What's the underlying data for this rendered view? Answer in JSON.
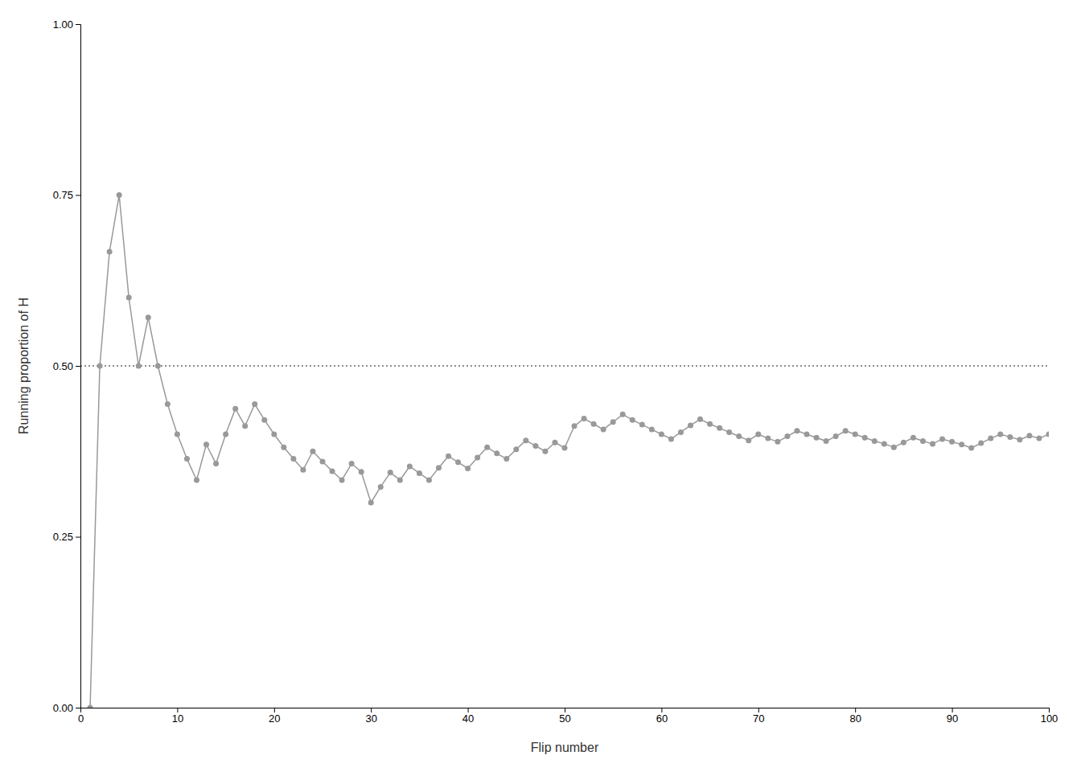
{
  "chart_data": {
    "type": "line",
    "x_label": "Flip number",
    "y_label": "Running proportion of H",
    "x": [
      1,
      2,
      3,
      4,
      5,
      6,
      7,
      8,
      9,
      10,
      11,
      12,
      13,
      14,
      15,
      16,
      17,
      18,
      19,
      20,
      21,
      22,
      23,
      24,
      25,
      26,
      27,
      28,
      29,
      30,
      31,
      32,
      33,
      34,
      35,
      36,
      37,
      38,
      39,
      40,
      41,
      42,
      43,
      44,
      45,
      46,
      47,
      48,
      49,
      50,
      51,
      52,
      53,
      54,
      55,
      56,
      57,
      58,
      59,
      60,
      61,
      62,
      63,
      64,
      65,
      66,
      67,
      68,
      69,
      70,
      71,
      72,
      73,
      74,
      75,
      76,
      77,
      78,
      79,
      80,
      81,
      82,
      83,
      84,
      85,
      86,
      87,
      88,
      89,
      90,
      91,
      92,
      93,
      94,
      95,
      96,
      97,
      98,
      99,
      100
    ],
    "values": [
      0.0,
      0.5,
      0.667,
      0.75,
      0.6,
      0.5,
      0.571,
      0.5,
      0.444,
      0.4,
      0.364,
      0.333,
      0.385,
      0.357,
      0.4,
      0.4375,
      0.412,
      0.444,
      0.421,
      0.4,
      0.381,
      0.364,
      0.348,
      0.375,
      0.36,
      0.346,
      0.333,
      0.357,
      0.345,
      0.3,
      0.323,
      0.344,
      0.333,
      0.353,
      0.343,
      0.333,
      0.351,
      0.368,
      0.359,
      0.35,
      0.366,
      0.381,
      0.372,
      0.364,
      0.378,
      0.391,
      0.383,
      0.375,
      0.388,
      0.38,
      0.412,
      0.423,
      0.415,
      0.407,
      0.418,
      0.429,
      0.421,
      0.414,
      0.407,
      0.4,
      0.393,
      0.403,
      0.413,
      0.422,
      0.415,
      0.409,
      0.403,
      0.397,
      0.391,
      0.4,
      0.394,
      0.389,
      0.397,
      0.405,
      0.4,
      0.395,
      0.39,
      0.397,
      0.405,
      0.4,
      0.395,
      0.39,
      0.386,
      0.381,
      0.388,
      0.395,
      0.39,
      0.386,
      0.393,
      0.389,
      0.385,
      0.38,
      0.387,
      0.394,
      0.4,
      0.396,
      0.392,
      0.398,
      0.394,
      0.4
    ],
    "color": "#999999",
    "marker": "circle",
    "xlim": [
      0,
      100
    ],
    "ylim": [
      0.0,
      1.0
    ],
    "xticks": [
      0,
      10,
      20,
      30,
      40,
      50,
      60,
      70,
      80,
      90,
      100
    ],
    "yticks": [
      {
        "value": 0.0,
        "label": "0.00"
      },
      {
        "value": 0.25,
        "label": "0.25"
      },
      {
        "value": 0.5,
        "label": "0.50"
      },
      {
        "value": 0.75,
        "label": "0.75"
      },
      {
        "value": 1.0,
        "label": "1.00"
      }
    ],
    "grid": false,
    "hline": {
      "value": 0.5,
      "color": "#1a1a1a",
      "line_style": "dotted"
    }
  }
}
